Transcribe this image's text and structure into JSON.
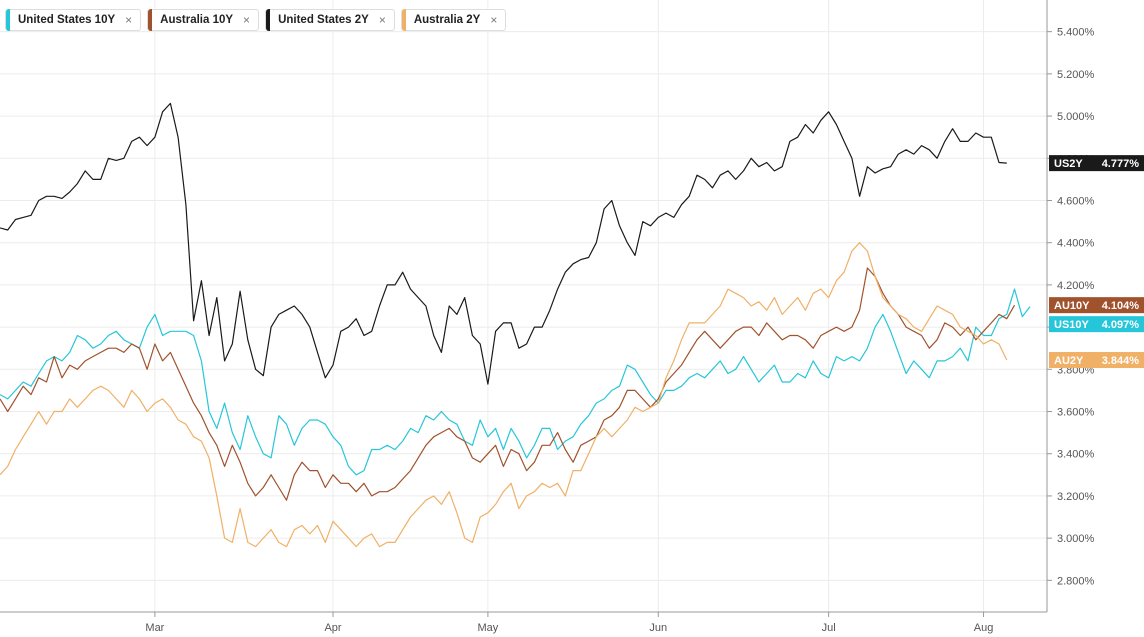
{
  "legend": [
    {
      "label": "United States 10Y",
      "color": "#26c6da",
      "close": "×"
    },
    {
      "label": "Australia 10Y",
      "color": "#a0522d",
      "close": "×"
    },
    {
      "label": "United States 2Y",
      "color": "#1a1a1a",
      "close": "×"
    },
    {
      "label": "Australia 2Y",
      "color": "#f0b066",
      "close": "×"
    }
  ],
  "chart_data": {
    "type": "line",
    "title": "",
    "xlabel": "",
    "ylabel": "",
    "ylim": [
      2.65,
      5.55
    ],
    "y_ticks": [
      {
        "value": 2.8,
        "label": "2.800%"
      },
      {
        "value": 3.0,
        "label": "3.000%"
      },
      {
        "value": 3.2,
        "label": "3.200%"
      },
      {
        "value": 3.4,
        "label": "3.400%"
      },
      {
        "value": 3.6,
        "label": "3.600%"
      },
      {
        "value": 3.8,
        "label": "3.800%"
      },
      {
        "value": 4.0,
        "label": "4.000%"
      },
      {
        "value": 4.2,
        "label": "4.200%"
      },
      {
        "value": 4.4,
        "label": "4.400%"
      },
      {
        "value": 4.6,
        "label": "4.600%"
      },
      {
        "value": 4.8,
        "label": "4.800%"
      },
      {
        "value": 5.0,
        "label": "5.000%"
      },
      {
        "value": 5.2,
        "label": "5.200%"
      },
      {
        "value": 5.4,
        "label": "5.400%"
      }
    ],
    "x_ticks": [
      {
        "index": 20,
        "label": "Mar"
      },
      {
        "index": 43,
        "label": "Apr"
      },
      {
        "index": 63,
        "label": "May"
      },
      {
        "index": 85,
        "label": "Jun"
      },
      {
        "index": 107,
        "label": "Jul"
      },
      {
        "index": 127,
        "label": "Aug"
      }
    ],
    "grid": true,
    "legend_position": "top-left",
    "series": [
      {
        "name": "United States 10Y",
        "short": "US10Y",
        "last": "4.097%",
        "color": "#26c6da",
        "values": [
          3.68,
          3.66,
          3.7,
          3.74,
          3.72,
          3.78,
          3.84,
          3.86,
          3.84,
          3.88,
          3.96,
          3.94,
          3.9,
          3.92,
          3.96,
          3.98,
          3.94,
          3.92,
          3.9,
          4.0,
          4.06,
          3.96,
          3.98,
          3.98,
          3.98,
          3.96,
          3.84,
          3.6,
          3.52,
          3.64,
          3.5,
          3.42,
          3.58,
          3.48,
          3.4,
          3.38,
          3.58,
          3.54,
          3.44,
          3.52,
          3.56,
          3.56,
          3.54,
          3.48,
          3.44,
          3.34,
          3.3,
          3.32,
          3.42,
          3.42,
          3.44,
          3.42,
          3.46,
          3.52,
          3.5,
          3.58,
          3.56,
          3.6,
          3.56,
          3.54,
          3.46,
          3.44,
          3.56,
          3.48,
          3.52,
          3.42,
          3.52,
          3.46,
          3.38,
          3.44,
          3.52,
          3.52,
          3.42,
          3.46,
          3.48,
          3.54,
          3.58,
          3.64,
          3.66,
          3.7,
          3.72,
          3.82,
          3.8,
          3.74,
          3.68,
          3.64,
          3.7,
          3.7,
          3.72,
          3.76,
          3.78,
          3.76,
          3.8,
          3.84,
          3.78,
          3.8,
          3.86,
          3.8,
          3.74,
          3.78,
          3.82,
          3.74,
          3.74,
          3.78,
          3.76,
          3.84,
          3.78,
          3.76,
          3.86,
          3.84,
          3.86,
          3.84,
          3.9,
          4.0,
          4.06,
          3.98,
          3.88,
          3.78,
          3.84,
          3.8,
          3.76,
          3.84,
          3.84,
          3.86,
          3.9,
          3.84,
          4.0,
          3.96,
          3.96,
          4.04,
          4.06,
          4.18,
          4.05,
          4.097
        ]
      },
      {
        "name": "Australia 10Y",
        "short": "AU10Y",
        "last": "4.104%",
        "color": "#a0522d",
        "values": [
          3.66,
          3.6,
          3.66,
          3.72,
          3.68,
          3.76,
          3.74,
          3.86,
          3.76,
          3.82,
          3.8,
          3.84,
          3.86,
          3.88,
          3.9,
          3.9,
          3.88,
          3.92,
          3.9,
          3.8,
          3.92,
          3.84,
          3.88,
          3.8,
          3.72,
          3.64,
          3.58,
          3.5,
          3.44,
          3.34,
          3.44,
          3.36,
          3.26,
          3.2,
          3.24,
          3.3,
          3.24,
          3.18,
          3.3,
          3.36,
          3.32,
          3.32,
          3.24,
          3.3,
          3.26,
          3.26,
          3.22,
          3.26,
          3.2,
          3.22,
          3.22,
          3.24,
          3.28,
          3.32,
          3.38,
          3.44,
          3.48,
          3.5,
          3.52,
          3.48,
          3.46,
          3.38,
          3.36,
          3.4,
          3.44,
          3.34,
          3.42,
          3.4,
          3.32,
          3.36,
          3.44,
          3.44,
          3.5,
          3.42,
          3.36,
          3.44,
          3.46,
          3.48,
          3.56,
          3.58,
          3.62,
          3.7,
          3.7,
          3.66,
          3.62,
          3.66,
          3.74,
          3.78,
          3.82,
          3.88,
          3.94,
          3.98,
          3.94,
          3.9,
          3.94,
          3.98,
          4.0,
          4.0,
          3.96,
          4.02,
          3.98,
          3.94,
          3.96,
          3.96,
          3.94,
          3.9,
          3.96,
          3.98,
          4.0,
          3.98,
          4.0,
          4.08,
          4.28,
          4.24,
          4.16,
          4.1,
          4.06,
          4.0,
          3.98,
          3.96,
          3.9,
          3.94,
          4.02,
          4.0,
          3.96,
          4.0,
          3.94,
          3.98,
          4.02,
          4.06,
          4.04,
          4.104
        ]
      },
      {
        "name": "United States 2Y",
        "short": "US2Y",
        "last": "4.777%",
        "color": "#1a1a1a",
        "values": [
          4.47,
          4.46,
          4.51,
          4.52,
          4.53,
          4.6,
          4.62,
          4.62,
          4.61,
          4.64,
          4.68,
          4.74,
          4.7,
          4.7,
          4.8,
          4.79,
          4.8,
          4.88,
          4.9,
          4.86,
          4.9,
          5.02,
          5.06,
          4.9,
          4.58,
          4.03,
          4.22,
          3.96,
          4.14,
          3.84,
          3.92,
          4.17,
          3.94,
          3.8,
          3.77,
          4.0,
          4.06,
          4.08,
          4.1,
          4.06,
          4.0,
          3.88,
          3.76,
          3.82,
          3.98,
          4.0,
          4.04,
          3.96,
          3.98,
          4.1,
          4.2,
          4.2,
          4.26,
          4.18,
          4.14,
          4.1,
          3.96,
          3.88,
          4.1,
          4.06,
          4.14,
          3.96,
          3.92,
          3.73,
          3.98,
          4.02,
          4.02,
          3.9,
          3.92,
          4.0,
          4.0,
          4.08,
          4.18,
          4.26,
          4.3,
          4.32,
          4.33,
          4.4,
          4.56,
          4.6,
          4.48,
          4.4,
          4.34,
          4.5,
          4.48,
          4.52,
          4.54,
          4.52,
          4.58,
          4.62,
          4.72,
          4.7,
          4.66,
          4.72,
          4.74,
          4.7,
          4.74,
          4.8,
          4.76,
          4.78,
          4.74,
          4.76,
          4.88,
          4.9,
          4.96,
          4.92,
          4.98,
          5.02,
          4.96,
          4.88,
          4.8,
          4.62,
          4.76,
          4.73,
          4.75,
          4.76,
          4.82,
          4.84,
          4.82,
          4.86,
          4.84,
          4.8,
          4.88,
          4.94,
          4.88,
          4.88,
          4.92,
          4.9,
          4.9,
          4.78,
          4.777
        ]
      },
      {
        "name": "Australia 2Y",
        "short": "AU2Y",
        "last": "3.844%",
        "color": "#f0b066",
        "values": [
          3.3,
          3.34,
          3.42,
          3.48,
          3.54,
          3.6,
          3.54,
          3.6,
          3.6,
          3.66,
          3.62,
          3.66,
          3.7,
          3.72,
          3.7,
          3.66,
          3.62,
          3.7,
          3.66,
          3.6,
          3.64,
          3.66,
          3.62,
          3.56,
          3.54,
          3.48,
          3.46,
          3.38,
          3.2,
          3.0,
          2.98,
          3.14,
          2.98,
          2.96,
          3.0,
          3.04,
          2.98,
          2.96,
          3.04,
          3.06,
          3.02,
          3.06,
          2.98,
          3.08,
          3.04,
          3.0,
          2.96,
          3.0,
          3.02,
          2.96,
          2.98,
          2.98,
          3.04,
          3.1,
          3.14,
          3.18,
          3.2,
          3.16,
          3.22,
          3.12,
          3.0,
          2.98,
          3.1,
          3.12,
          3.16,
          3.22,
          3.26,
          3.14,
          3.2,
          3.22,
          3.26,
          3.24,
          3.26,
          3.2,
          3.32,
          3.32,
          3.4,
          3.48,
          3.52,
          3.48,
          3.52,
          3.56,
          3.62,
          3.6,
          3.62,
          3.64,
          3.76,
          3.84,
          3.94,
          4.02,
          4.02,
          4.02,
          4.06,
          4.1,
          4.18,
          4.16,
          4.14,
          4.1,
          4.12,
          4.08,
          4.14,
          4.06,
          4.1,
          4.14,
          4.08,
          4.16,
          4.18,
          4.14,
          4.22,
          4.26,
          4.36,
          4.4,
          4.36,
          4.24,
          4.14,
          4.1,
          4.06,
          4.04,
          4.0,
          3.98,
          4.04,
          4.1,
          4.08,
          4.06,
          4.0,
          3.98,
          3.96,
          3.92,
          3.94,
          3.92,
          3.844
        ]
      }
    ]
  }
}
